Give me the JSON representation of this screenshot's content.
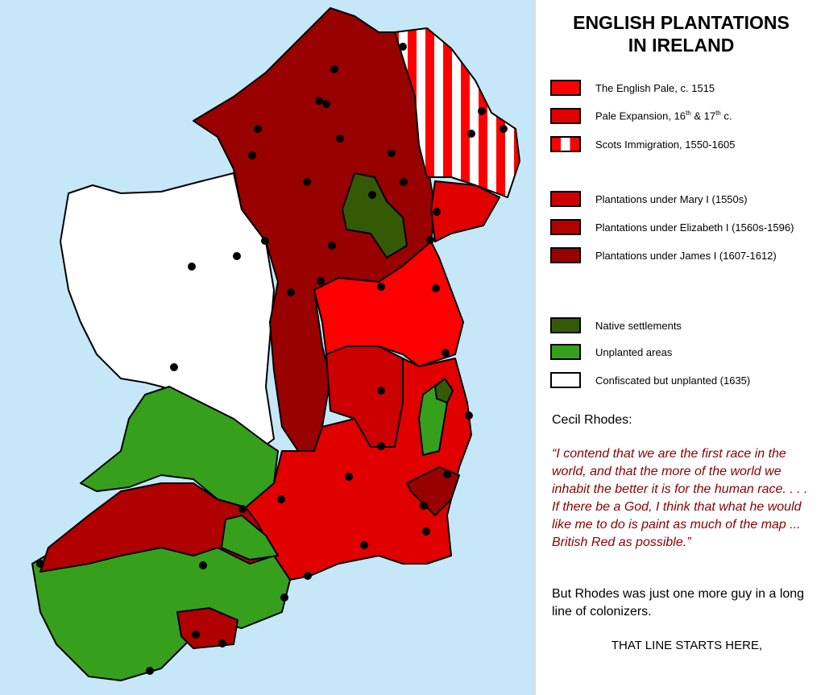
{
  "title_line1": "ENGLISH PLANTATIONS",
  "title_line2": "IN IRELAND",
  "legend": [
    {
      "label": "The English Pale, c. 1515",
      "color": "#ff0000"
    },
    {
      "label_pre": "Pale Expansion, 16",
      "sup1": "th",
      "label_mid": " & 17",
      "sup2": "th",
      "label_post": " c.",
      "color": "#e00000"
    },
    {
      "label": "Scots Immigration, 1550-1605",
      "color": "#ff0000/#ffffff stripes"
    },
    {
      "label": "Plantations under Mary I (1550s)",
      "color": "#cc0000"
    },
    {
      "label": "Plantations under Elizabeth I (1560s-1596)",
      "color": "#b00000"
    },
    {
      "label": "Plantations under James I (1607-1612)",
      "color": "#990000"
    },
    {
      "label": "Native settlements",
      "color": "#355a06"
    },
    {
      "label": "Unplanted areas",
      "color": "#36a01c"
    },
    {
      "label": "Confiscated but unplanted (1635)",
      "color": "#ffffff"
    }
  ],
  "quote_author": "Cecil Rhodes:",
  "quote": "“I contend that we are the first race in the world, and that the more of the world we inhabit the better it is for the human race.  . . .",
  "quote2": "If there be a God, I think that what he would like me to do is paint as much of the map ... British Red as possible.”",
  "comment": "But Rhodes was just one more guy in a long line of colonizers.",
  "closing": "THAT LINE STARTS HERE,"
}
